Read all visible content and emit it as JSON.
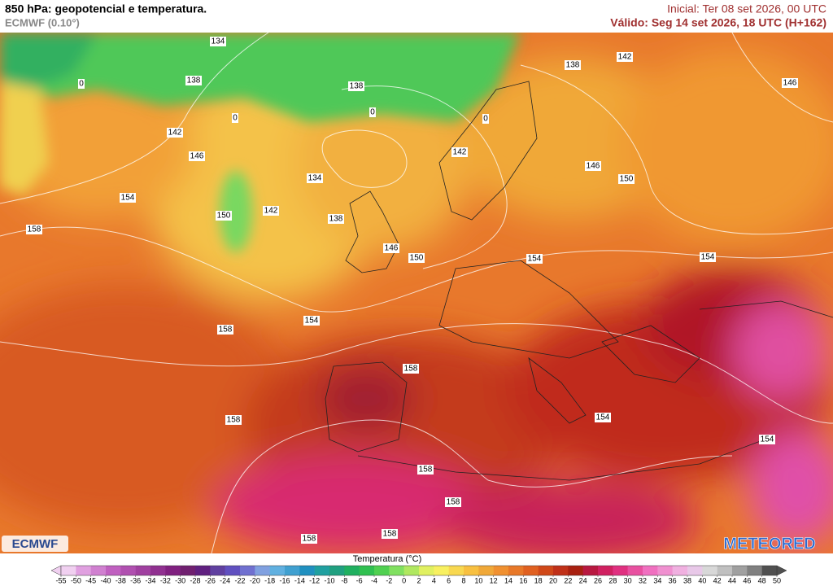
{
  "header": {
    "title": "850 hPa: geopotencial e temperatura.",
    "model": "ECMWF (0.10°)",
    "initial": "Inicial: Ter 08 set 2026, 00 UTC",
    "valid": "Válido: Seg 14 set 2026, 18 UTC (H+162)"
  },
  "contour_labels": [
    134,
    138,
    138,
    138,
    142,
    146,
    142,
    142,
    146,
    134,
    146,
    150,
    154,
    142,
    150,
    138,
    158,
    146,
    150,
    154,
    154,
    154,
    158,
    158,
    158,
    154,
    154,
    158,
    158,
    158,
    158
  ],
  "isotherm_labels": [
    0,
    0,
    0,
    0
  ],
  "logos": {
    "left": "ECMWF",
    "right": "METEORED"
  },
  "colorbar": {
    "title": "Temperatura (°C)",
    "ticks": [
      -55,
      -50,
      -45,
      -40,
      -38,
      -36,
      -34,
      -32,
      -30,
      -28,
      -26,
      -24,
      -22,
      -20,
      -18,
      -16,
      -14,
      -12,
      -10,
      -8,
      -6,
      -4,
      -2,
      0,
      2,
      4,
      6,
      8,
      10,
      12,
      14,
      16,
      18,
      20,
      22,
      24,
      26,
      28,
      30,
      32,
      34,
      36,
      38,
      40,
      42,
      44,
      46,
      48,
      50
    ],
    "colors": [
      "#f0d0f0",
      "#e0a0e0",
      "#d080d0",
      "#c060c0",
      "#b050b0",
      "#a040a0",
      "#903090",
      "#802080",
      "#702070",
      "#602080",
      "#6040a0",
      "#6050c0",
      "#7070d0",
      "#80a0e0",
      "#60b0e0",
      "#40a0d0",
      "#2090c0",
      "#20a0a0",
      "#20a080",
      "#20b060",
      "#30c050",
      "#50d050",
      "#80e060",
      "#b0e860",
      "#e0f060",
      "#f8f060",
      "#f8d850",
      "#f8c040",
      "#f0a838",
      "#f09030",
      "#e87828",
      "#e06020",
      "#d04818",
      "#c03018",
      "#a82010",
      "#b81840",
      "#d02060",
      "#e03080",
      "#e850a0",
      "#f070c0",
      "#f090d0",
      "#f0b0e0",
      "#e8c8e8",
      "#d8d8d8",
      "#c0c0c0",
      "#a0a0a0",
      "#808080",
      "#505050"
    ]
  }
}
